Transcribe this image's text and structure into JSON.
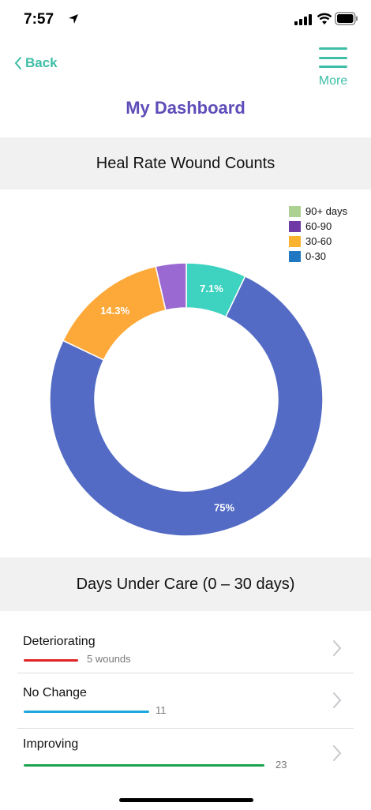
{
  "status_bar": {
    "time": "7:57"
  },
  "nav": {
    "back_label": "Back",
    "more_label": "More",
    "title": "My Dashboard"
  },
  "chart_section": {
    "title": "Heal Rate Wound Counts"
  },
  "chart_data": {
    "type": "pie",
    "donut": true,
    "legend_position": "top-right",
    "legend": [
      {
        "label": "90+ days",
        "color": "#acd190"
      },
      {
        "label": "60-90",
        "color": "#6f3aa6"
      },
      {
        "label": "30-60",
        "color": "#fbb32f"
      },
      {
        "label": "0-30",
        "color": "#1f78c1"
      }
    ],
    "slices": [
      {
        "value": 7.1,
        "label": "7.1%",
        "color": "#3ed3c0"
      },
      {
        "value": 75,
        "label": "75%",
        "color": "#536bc4"
      },
      {
        "value": 14.3,
        "label": "14.3%",
        "color": "#fda93a"
      },
      {
        "value": 3.6,
        "label": "",
        "color": "#9b69d2"
      }
    ]
  },
  "care_section": {
    "title": "Days Under Care (0 – 30 days)"
  },
  "rows": [
    {
      "label": "Deteriorating",
      "count": "5 wounds",
      "value": 5,
      "color": "#e02424"
    },
    {
      "label": "No Change",
      "count": "11",
      "value": 11,
      "color": "#1ea7dc"
    },
    {
      "label": "Improving",
      "count": "23",
      "value": 23,
      "color": "#1ba44f"
    }
  ]
}
